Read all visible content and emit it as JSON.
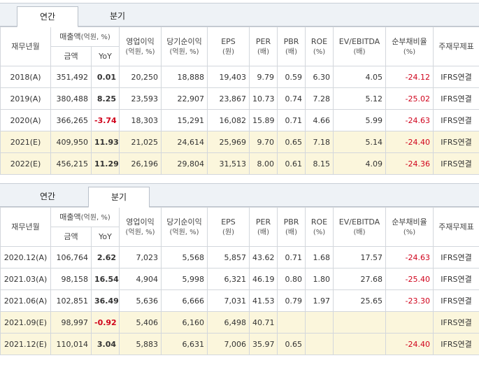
{
  "colors": {
    "negative": "#d0021b",
    "estimate_bg": "#fbf6dc",
    "tabbar_bg": "#eef2f6"
  },
  "headers": {
    "period": "재무년월",
    "sales": "매출액",
    "sales_unit": "(억원, %)",
    "amount": "금액",
    "yoy": "YoY",
    "op_profit": "영업이익",
    "op_profit_unit": "(억원, %)",
    "net_profit": "당기순이익",
    "net_profit_unit": "(억원, %)",
    "eps": "EPS",
    "eps_unit": "(원)",
    "per": "PER",
    "per_unit": "(배)",
    "pbr": "PBR",
    "pbr_unit": "(배)",
    "roe": "ROE",
    "roe_unit": "(%)",
    "ev": "EV/EBITDA",
    "ev_unit": "(배)",
    "debt": "순부채비율",
    "debt_unit": "(%)",
    "std": "주재무제표"
  },
  "annual": {
    "tabs": {
      "annual": "연간",
      "quarterly": "분기"
    },
    "active": "annual",
    "rows": [
      {
        "period": "2018(A)",
        "amount": "351,492",
        "yoy": "0.01",
        "op": "20,250",
        "net": "18,888",
        "eps": "19,403",
        "per": "9.79",
        "pbr": "0.59",
        "roe": "6.30",
        "ev": "4.05",
        "debt": "-24.12",
        "std": "IFRS연결",
        "est": false
      },
      {
        "period": "2019(A)",
        "amount": "380,488",
        "yoy": "8.25",
        "op": "23,593",
        "net": "22,907",
        "eps": "23,867",
        "per": "10.73",
        "pbr": "0.74",
        "roe": "7.28",
        "ev": "5.12",
        "debt": "-25.02",
        "std": "IFRS연결",
        "est": false
      },
      {
        "period": "2020(A)",
        "amount": "366,265",
        "yoy": "-3.74",
        "op": "18,303",
        "net": "15,291",
        "eps": "16,082",
        "per": "15.89",
        "pbr": "0.71",
        "roe": "4.66",
        "ev": "5.99",
        "debt": "-24.63",
        "std": "IFRS연결",
        "est": false
      },
      {
        "period": "2021(E)",
        "amount": "409,950",
        "yoy": "11.93",
        "op": "21,025",
        "net": "24,614",
        "eps": "25,969",
        "per": "9.70",
        "pbr": "0.65",
        "roe": "7.18",
        "ev": "5.14",
        "debt": "-24.40",
        "std": "IFRS연결",
        "est": true
      },
      {
        "period": "2022(E)",
        "amount": "456,215",
        "yoy": "11.29",
        "op": "26,196",
        "net": "29,804",
        "eps": "31,513",
        "per": "8.00",
        "pbr": "0.61",
        "roe": "8.15",
        "ev": "4.09",
        "debt": "-24.36",
        "std": "IFRS연결",
        "est": true
      }
    ]
  },
  "quarterly": {
    "tabs": {
      "annual": "연간",
      "quarterly": "분기"
    },
    "active": "quarterly",
    "rows": [
      {
        "period": "2020.12(A)",
        "amount": "106,764",
        "yoy": "2.62",
        "op": "7,023",
        "net": "5,568",
        "eps": "5,857",
        "per": "43.62",
        "pbr": "0.71",
        "roe": "1.68",
        "ev": "17.57",
        "debt": "-24.63",
        "std": "IFRS연결",
        "est": false
      },
      {
        "period": "2021.03(A)",
        "amount": "98,158",
        "yoy": "16.54",
        "op": "4,904",
        "net": "5,998",
        "eps": "6,321",
        "per": "46.19",
        "pbr": "0.80",
        "roe": "1.80",
        "ev": "27.68",
        "debt": "-25.40",
        "std": "IFRS연결",
        "est": false
      },
      {
        "period": "2021.06(A)",
        "amount": "102,851",
        "yoy": "36.49",
        "op": "5,636",
        "net": "6,666",
        "eps": "7,031",
        "per": "41.53",
        "pbr": "0.79",
        "roe": "1.97",
        "ev": "25.65",
        "debt": "-23.30",
        "std": "IFRS연결",
        "est": false
      },
      {
        "period": "2021.09(E)",
        "amount": "98,997",
        "yoy": "-0.92",
        "op": "5,406",
        "net": "6,160",
        "eps": "6,498",
        "per": "40.71",
        "pbr": "",
        "roe": "",
        "ev": "",
        "debt": "",
        "std": "IFRS연결",
        "est": true
      },
      {
        "period": "2021.12(E)",
        "amount": "110,014",
        "yoy": "3.04",
        "op": "5,883",
        "net": "6,631",
        "eps": "7,006",
        "per": "35.97",
        "pbr": "0.65",
        "roe": "",
        "ev": "",
        "debt": "-24.40",
        "std": "IFRS연결",
        "est": true
      }
    ]
  }
}
